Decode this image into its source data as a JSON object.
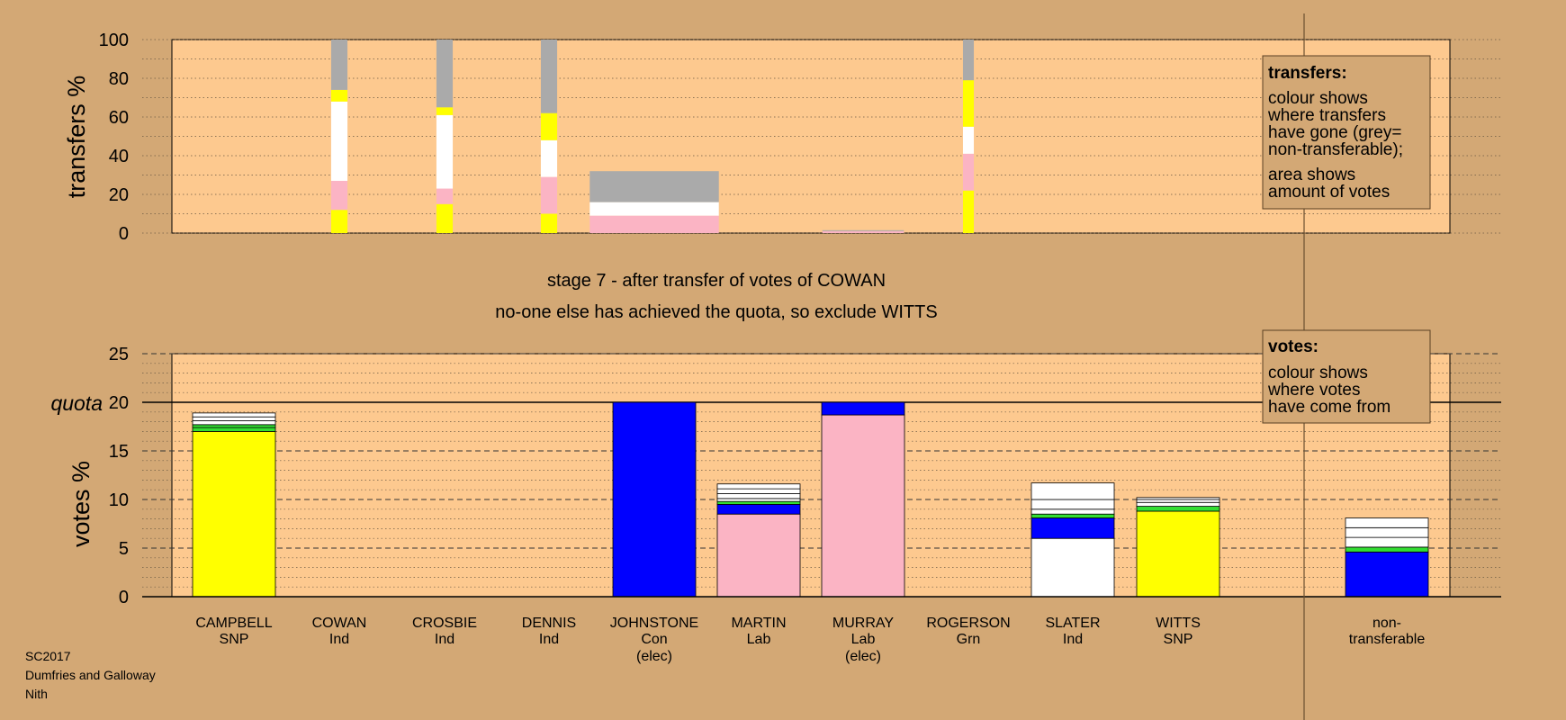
{
  "colors": {
    "background": "#d3a875",
    "panel": "#fdc98f",
    "SNP": "#ffff00",
    "Lab": "#fbb4c4",
    "Con": "#0000ff",
    "Grn": "#33dd33",
    "Ind": "#ffffff",
    "non_transferable": "#aaaaaa"
  },
  "stage": {
    "line1": "stage 7 - after transfer of votes of COWAN",
    "line2": "no-one else has achieved the quota, so exclude WITTS"
  },
  "footer": [
    "SC2017",
    "Dumfries and Galloway",
    "Nith"
  ],
  "chart_data": [
    {
      "type": "bar",
      "name": "transfers",
      "ylabel": "transfers %",
      "ylim": [
        0,
        100
      ],
      "yticks": [
        0,
        20,
        40,
        60,
        80,
        100
      ],
      "grid": true,
      "legend": {
        "placement": "top-right",
        "title": "transfers:",
        "lines": [
          [
            "colour shows",
            "where transfers",
            "have gone (grey=",
            "non-transferable);"
          ],
          [
            "area shows",
            "amount of votes"
          ]
        ]
      },
      "bars": [
        {
          "candidate": "COWAN",
          "width_pct": 1.2,
          "segments": [
            {
              "to": "CAMPBELL",
              "party": "SNP",
              "value": 12
            },
            {
              "to": "MARTIN",
              "party": "Lab",
              "value": 15
            },
            {
              "to": "SLATER",
              "party": "Ind",
              "value": 41
            },
            {
              "to": "WITTS",
              "party": "SNP",
              "value": 6
            },
            {
              "to": "non-transferable",
              "party": "NT",
              "value": 26
            }
          ]
        },
        {
          "candidate": "CROSBIE",
          "width_pct": 1.2,
          "segments": [
            {
              "to": "CAMPBELL",
              "party": "SNP",
              "value": 15
            },
            {
              "to": "MARTIN",
              "party": "Lab",
              "value": 8
            },
            {
              "to": "SLATER",
              "party": "Ind",
              "value": 38
            },
            {
              "to": "WITTS",
              "party": "SNP",
              "value": 4
            },
            {
              "to": "non-transferable",
              "party": "NT",
              "value": 35
            }
          ]
        },
        {
          "candidate": "DENNIS",
          "width_pct": 1.2,
          "segments": [
            {
              "to": "CAMPBELL",
              "party": "SNP",
              "value": 10
            },
            {
              "to": "MARTIN",
              "party": "Lab",
              "value": 19
            },
            {
              "to": "SLATER",
              "party": "Ind",
              "value": 19
            },
            {
              "to": "WITTS",
              "party": "SNP",
              "value": 14
            },
            {
              "to": "non-transferable",
              "party": "NT",
              "value": 38
            }
          ]
        },
        {
          "candidate": "JOHNSTONE",
          "width_pct": 9.5,
          "segments": [
            {
              "to": "MARTIN",
              "party": "Lab",
              "value": 9
            },
            {
              "to": "SLATER",
              "party": "Ind",
              "value": 7
            },
            {
              "to": "non-transferable",
              "party": "NT",
              "value": 16
            }
          ]
        },
        {
          "candidate": "MURRAY",
          "width_pct": 6.0,
          "segments": [
            {
              "to": "MARTIN",
              "party": "Lab",
              "value": 1
            },
            {
              "to": "non-transferable",
              "party": "NT",
              "value": 0.5
            }
          ]
        },
        {
          "candidate": "ROGERSON",
          "width_pct": 0.8,
          "segments": [
            {
              "to": "CAMPBELL",
              "party": "SNP",
              "value": 22
            },
            {
              "to": "MARTIN",
              "party": "Lab",
              "value": 19
            },
            {
              "to": "SLATER",
              "party": "Ind",
              "value": 14
            },
            {
              "to": "WITTS",
              "party": "SNP",
              "value": 24
            },
            {
              "to": "non-transferable",
              "party": "NT",
              "value": 21
            }
          ]
        }
      ]
    },
    {
      "type": "bar",
      "name": "votes",
      "ylabel": "votes %",
      "ylim": [
        0,
        25
      ],
      "yticks": [
        0,
        5,
        10,
        15,
        20,
        25
      ],
      "quota": 20,
      "quota_label": "quota",
      "grid": true,
      "legend": {
        "placement": "top-right",
        "title": "votes:",
        "lines": [
          [
            "colour shows",
            "where votes",
            "have come from"
          ]
        ]
      },
      "bars": [
        {
          "candidate": "CAMPBELL",
          "party": "SNP",
          "note": "",
          "segments": [
            {
              "color": "SNP",
              "value": 17.0
            },
            {
              "color": "Grn",
              "value": 0.4
            },
            {
              "color": "Grn",
              "value": 0.3
            },
            {
              "color": "Ind",
              "value": 0.4
            },
            {
              "color": "Ind",
              "value": 0.4
            },
            {
              "color": "Ind",
              "value": 0.4
            }
          ]
        },
        {
          "candidate": "COWAN",
          "party": "Ind",
          "note": "",
          "segments": []
        },
        {
          "candidate": "CROSBIE",
          "party": "Ind",
          "note": "",
          "segments": []
        },
        {
          "candidate": "DENNIS",
          "party": "Ind",
          "note": "",
          "segments": []
        },
        {
          "candidate": "JOHNSTONE",
          "party": "Con",
          "note": "(elec)",
          "segments": [
            {
              "color": "Con",
              "value": 20.0
            }
          ]
        },
        {
          "candidate": "MARTIN",
          "party": "Lab",
          "note": "",
          "segments": [
            {
              "color": "Lab",
              "value": 8.5
            },
            {
              "color": "Con",
              "value": 1.0
            },
            {
              "color": "Grn",
              "value": 0.3
            },
            {
              "color": "Ind",
              "value": 0.3
            },
            {
              "color": "Ind",
              "value": 0.5
            },
            {
              "color": "Ind",
              "value": 0.5
            },
            {
              "color": "Ind",
              "value": 0.5
            }
          ]
        },
        {
          "candidate": "MURRAY",
          "party": "Lab",
          "note": "(elec)",
          "segments": [
            {
              "color": "Lab",
              "value": 18.7
            },
            {
              "color": "Con",
              "value": 1.3
            }
          ]
        },
        {
          "candidate": "ROGERSON",
          "party": "Grn",
          "note": "",
          "segments": []
        },
        {
          "candidate": "SLATER",
          "party": "Ind",
          "note": "",
          "segments": [
            {
              "color": "Ind",
              "value": 6.0
            },
            {
              "color": "Con",
              "value": 2.1
            },
            {
              "color": "Grn",
              "value": 0.4
            },
            {
              "color": "Ind",
              "value": 0.5
            },
            {
              "color": "Ind",
              "value": 1.0
            },
            {
              "color": "Ind",
              "value": 1.7
            }
          ]
        },
        {
          "candidate": "WITTS",
          "party": "SNP",
          "note": "",
          "segments": [
            {
              "color": "SNP",
              "value": 8.8
            },
            {
              "color": "Grn",
              "value": 0.5
            },
            {
              "color": "Ind",
              "value": 0.4
            },
            {
              "color": "Ind",
              "value": 0.3
            },
            {
              "color": "Ind",
              "value": 0.2
            }
          ]
        },
        {
          "candidate": "non-",
          "party": "transferable",
          "note": "",
          "segments": [
            {
              "color": "Con",
              "value": 4.6
            },
            {
              "color": "Grn",
              "value": 0.5
            },
            {
              "color": "Ind",
              "value": 1.0
            },
            {
              "color": "Ind",
              "value": 1.0
            },
            {
              "color": "Ind",
              "value": 1.0
            }
          ]
        }
      ]
    }
  ]
}
